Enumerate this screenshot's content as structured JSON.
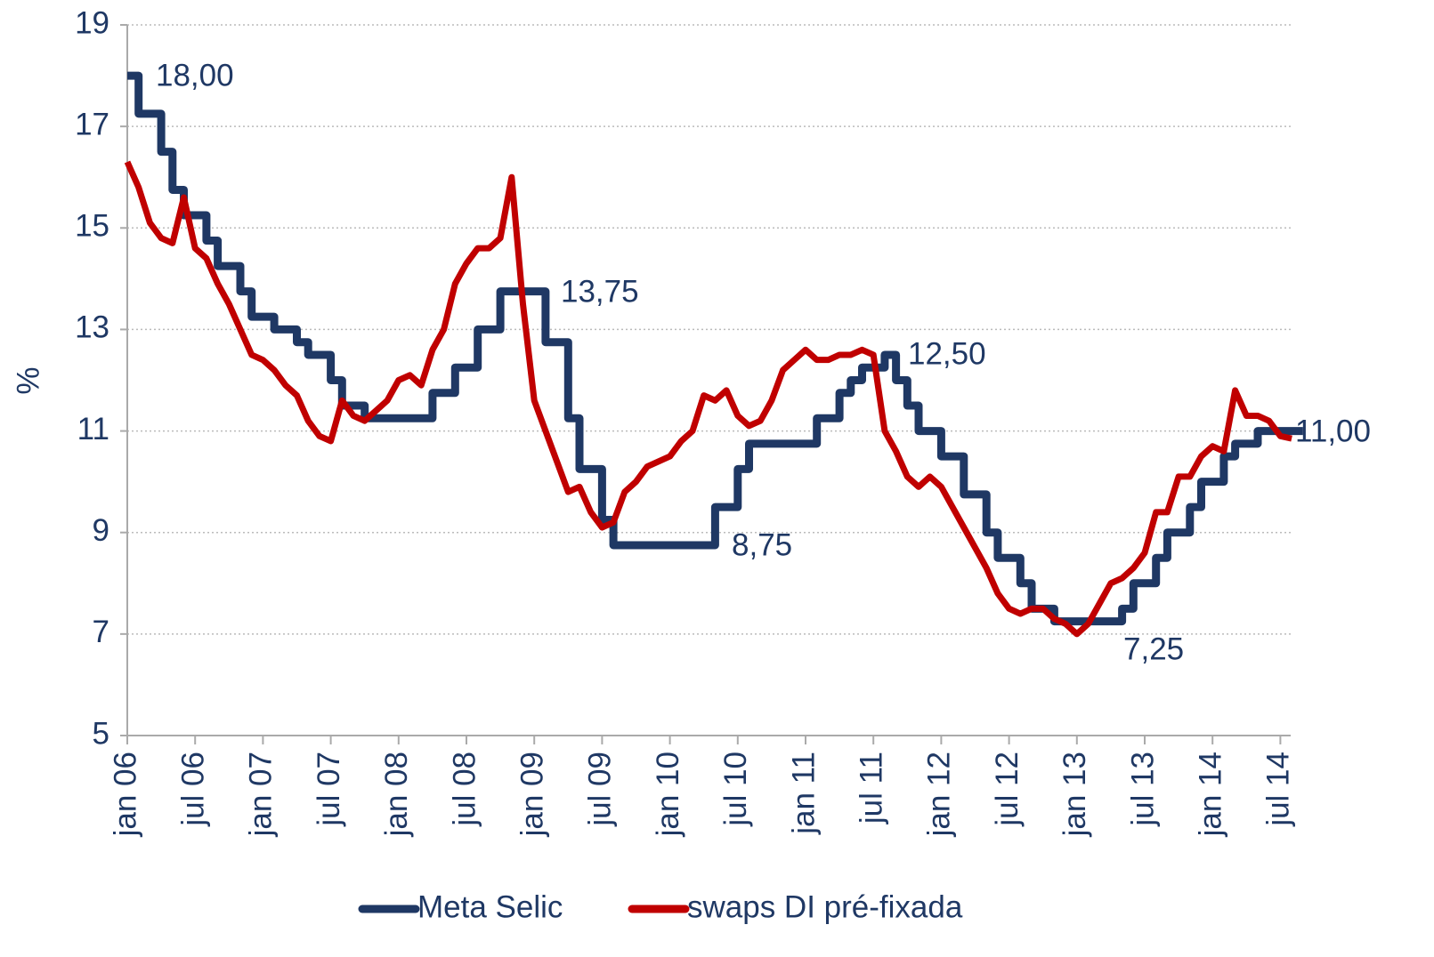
{
  "chart_data": {
    "type": "line",
    "y_label": "%",
    "categories": [
      "jan 06",
      null,
      null,
      null,
      null,
      null,
      "jul 06",
      null,
      null,
      null,
      null,
      null,
      "jan 07",
      null,
      null,
      null,
      null,
      null,
      "jul 07",
      null,
      null,
      null,
      null,
      null,
      "jan 08",
      null,
      null,
      null,
      null,
      null,
      "jul 08",
      null,
      null,
      null,
      null,
      null,
      "jan 09",
      null,
      null,
      null,
      null,
      null,
      "jul 09",
      null,
      null,
      null,
      null,
      null,
      "jan 10",
      null,
      null,
      null,
      null,
      null,
      "jul 10",
      null,
      null,
      null,
      null,
      null,
      "jan 11",
      null,
      null,
      null,
      null,
      null,
      "jul 11",
      null,
      null,
      null,
      null,
      null,
      "jan 12",
      null,
      null,
      null,
      null,
      null,
      "jul 12",
      null,
      null,
      null,
      null,
      null,
      "jan 13",
      null,
      null,
      null,
      null,
      null,
      "jul 13",
      null,
      null,
      null,
      null,
      null,
      "jan 14",
      null,
      null,
      null,
      null,
      null,
      "jul 14",
      null
    ],
    "series": [
      {
        "name": "Meta Selic",
        "color": "#1f3864",
        "step": true,
        "values": [
          18.0,
          17.25,
          17.25,
          16.5,
          15.75,
          15.25,
          15.25,
          14.75,
          14.25,
          14.25,
          13.75,
          13.25,
          13.25,
          13.0,
          13.0,
          12.75,
          12.5,
          12.5,
          12.0,
          11.5,
          11.5,
          11.25,
          11.25,
          11.25,
          11.25,
          11.25,
          11.25,
          11.75,
          11.75,
          12.25,
          12.25,
          13.0,
          13.0,
          13.75,
          13.75,
          13.75,
          13.75,
          12.75,
          12.75,
          11.25,
          10.25,
          10.25,
          9.25,
          8.75,
          8.75,
          8.75,
          8.75,
          8.75,
          8.75,
          8.75,
          8.75,
          8.75,
          9.5,
          9.5,
          10.25,
          10.75,
          10.75,
          10.75,
          10.75,
          10.75,
          10.75,
          11.25,
          11.25,
          11.75,
          12.0,
          12.25,
          12.25,
          12.5,
          12.0,
          11.5,
          11.0,
          11.0,
          10.5,
          10.5,
          9.75,
          9.75,
          9.0,
          8.5,
          8.5,
          8.0,
          7.5,
          7.5,
          7.25,
          7.25,
          7.25,
          7.25,
          7.25,
          7.25,
          7.5,
          8.0,
          8.0,
          8.5,
          9.0,
          9.0,
          9.5,
          10.0,
          10.0,
          10.5,
          10.75,
          10.75,
          11.0,
          11.0,
          11.0,
          11.0
        ]
      },
      {
        "name": "swaps DI pré-fixada",
        "color": "#c00000",
        "values": [
          16.3,
          15.8,
          15.1,
          14.8,
          14.7,
          15.6,
          14.6,
          14.4,
          13.9,
          13.5,
          13.0,
          12.5,
          12.4,
          12.2,
          11.9,
          11.7,
          11.2,
          10.9,
          10.8,
          11.6,
          11.3,
          11.2,
          11.4,
          11.6,
          12.0,
          12.1,
          11.9,
          12.6,
          13.0,
          13.9,
          14.3,
          14.6,
          14.6,
          14.8,
          16.0,
          13.5,
          11.6,
          11.0,
          10.4,
          9.8,
          9.9,
          9.4,
          9.1,
          9.2,
          9.8,
          10.0,
          10.3,
          10.4,
          10.5,
          10.8,
          11.0,
          11.7,
          11.6,
          11.8,
          11.3,
          11.1,
          11.2,
          11.6,
          12.2,
          12.4,
          12.6,
          12.4,
          12.4,
          12.5,
          12.5,
          12.6,
          12.5,
          11.0,
          10.6,
          10.1,
          9.9,
          10.1,
          9.9,
          9.5,
          9.1,
          8.7,
          8.3,
          7.8,
          7.5,
          7.4,
          7.5,
          7.5,
          7.3,
          7.2,
          7.0,
          7.2,
          7.6,
          8.0,
          8.1,
          8.3,
          8.6,
          9.4,
          9.4,
          10.1,
          10.1,
          10.5,
          10.7,
          10.6,
          11.8,
          11.3,
          11.3,
          11.2,
          10.9,
          10.85
        ]
      }
    ],
    "annotations": [
      "18,00",
      "13,75",
      "12,50",
      "8,75",
      "7,25",
      "11,00"
    ],
    "ylim": [
      5,
      19
    ],
    "yticks": [
      5,
      7,
      9,
      11,
      13,
      15,
      17,
      19
    ],
    "grid": true,
    "legend": "bottom"
  }
}
